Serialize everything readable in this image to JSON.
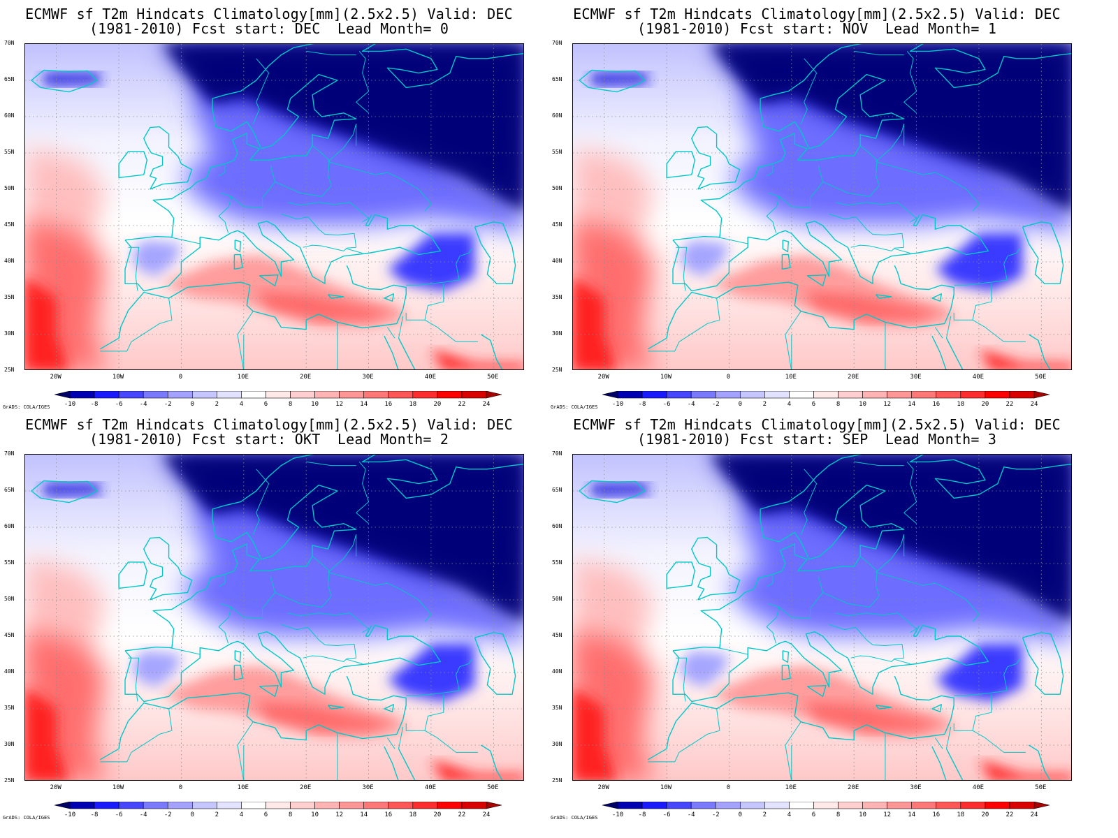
{
  "panels": [
    {
      "title_line1": "ECMWF sf T2m Hindcats Climatology[mm](2.5x2.5) Valid: DEC",
      "title_line2": "(1981-2010) Fcst start: DEC  Lead Month= 0"
    },
    {
      "title_line1": "ECMWF sf T2m Hindcats Climatology[mm](2.5x2.5) Valid: DEC",
      "title_line2": "(1981-2010) Fcst start: NOV  Lead Month= 1"
    },
    {
      "title_line1": "ECMWF sf T2m Hindcats Climatology[mm](2.5x2.5) Valid: DEC",
      "title_line2": "(1981-2010) Fcst start: OKT  Lead Month= 2"
    },
    {
      "title_line1": "ECMWF sf T2m Hindcats Climatology[mm](2.5x2.5) Valid: DEC",
      "title_line2": "(1981-2010) Fcst start: SEP  Lead Month= 3"
    }
  ],
  "axes": {
    "lat_labels": [
      "70N",
      "65N",
      "60N",
      "55N",
      "50N",
      "45N",
      "40N",
      "35N",
      "30N",
      "25N"
    ],
    "lon_labels": [
      "20W",
      "10W",
      "0",
      "10E",
      "20E",
      "30E",
      "40E",
      "50E"
    ],
    "lat_range": [
      25,
      70
    ],
    "lon_range": [
      -25,
      55
    ]
  },
  "colorbar": {
    "tick_labels": [
      "-10",
      "-8",
      "-6",
      "-4",
      "-2",
      "0",
      "2",
      "4",
      "6",
      "8",
      "10",
      "12",
      "14",
      "16",
      "18",
      "20",
      "22",
      "24"
    ],
    "colors": [
      "#000066",
      "#0000b3",
      "#1a1aff",
      "#4747ff",
      "#7a7aff",
      "#a3a3ff",
      "#c6c6ff",
      "#e2e2ff",
      "#ffffff",
      "#ffe8e8",
      "#ffcfcf",
      "#ffb3b3",
      "#ff9696",
      "#ff7878",
      "#ff5656",
      "#ff2e2e",
      "#ff0000",
      "#d90000",
      "#a60000"
    ]
  },
  "credit": "GrADS: COLA/IGES",
  "colors": {
    "coastline": "#00c8c8",
    "grid": "#8c8c8c"
  }
}
